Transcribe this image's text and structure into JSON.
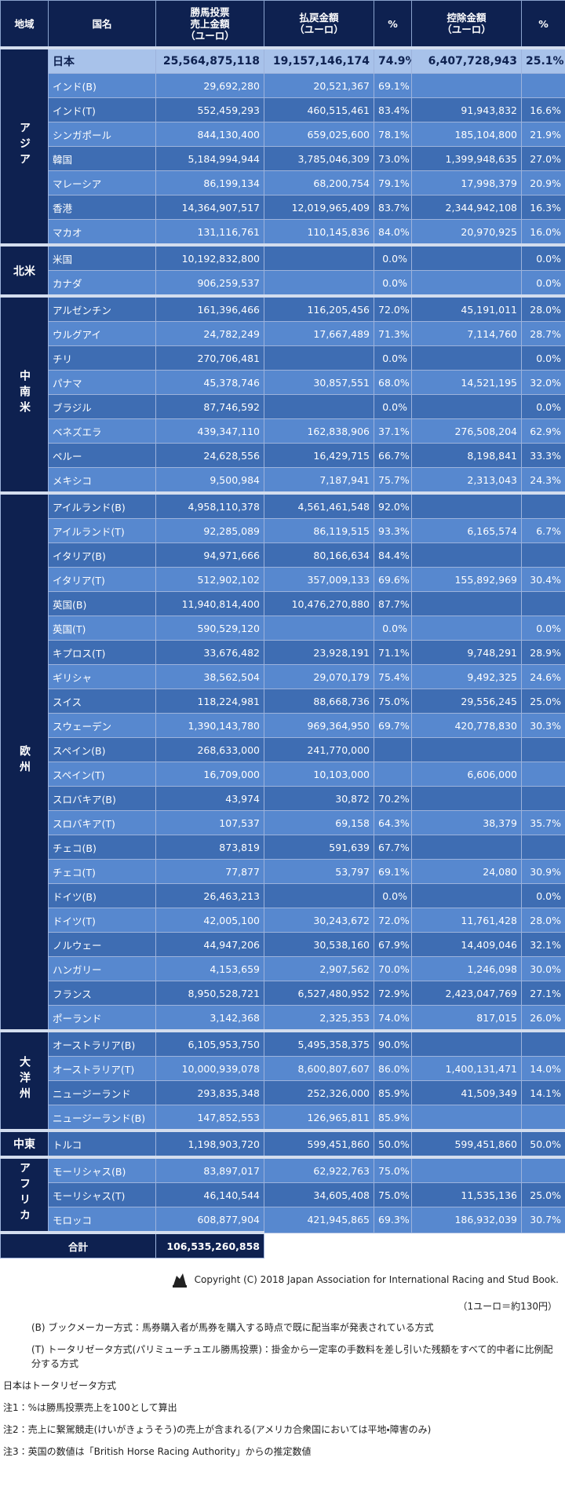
{
  "table": {
    "header": [
      "地域",
      "国名",
      "勝馬投票\n売上金額\n（ユーロ）",
      "払戻金額\n（ユーロ）",
      "%",
      "控除金額\n（ユーロ）",
      "%"
    ],
    "groups": [
      {
        "region": "アジア",
        "rows": [
          [
            "日本",
            "25,564,875,118",
            "19,157,146,174",
            "74.9%",
            "6,407,728,943",
            "25.1%"
          ],
          [
            "インド(B)",
            "29,692,280",
            "20,521,367",
            "69.1%",
            null,
            null
          ],
          [
            "インド(T)",
            "552,459,293",
            "460,515,461",
            "83.4%",
            "91,943,832",
            "16.6%"
          ],
          [
            "シンガポール",
            "844,130,400",
            "659,025,600",
            "78.1%",
            "185,104,800",
            "21.9%"
          ],
          [
            "韓国",
            "5,184,994,944",
            "3,785,046,309",
            "73.0%",
            "1,399,948,635",
            "27.0%"
          ],
          [
            "マレーシア",
            "86,199,134",
            "68,200,754",
            "79.1%",
            "17,998,379",
            "20.9%"
          ],
          [
            "香港",
            "14,364,907,517",
            "12,019,965,409",
            "83.7%",
            "2,344,942,108",
            "16.3%"
          ],
          [
            "マカオ",
            "131,116,761",
            "110,145,836",
            "84.0%",
            "20,970,925",
            "16.0%"
          ]
        ]
      },
      {
        "region": "北米",
        "rows": [
          [
            "米国",
            "10,192,832,800",
            null,
            "0.0%",
            null,
            "0.0%"
          ],
          [
            "カナダ",
            "906,259,537",
            null,
            "0.0%",
            null,
            "0.0%"
          ]
        ]
      },
      {
        "region": "中南米",
        "rows": [
          [
            "アルゼンチン",
            "161,396,466",
            "116,205,456",
            "72.0%",
            "45,191,011",
            "28.0%"
          ],
          [
            "ウルグアイ",
            "24,782,249",
            "17,667,489",
            "71.3%",
            "7,114,760",
            "28.7%"
          ],
          [
            "チリ",
            "270,706,481",
            null,
            "0.0%",
            null,
            "0.0%"
          ],
          [
            "パナマ",
            "45,378,746",
            "30,857,551",
            "68.0%",
            "14,521,195",
            "32.0%"
          ],
          [
            "ブラジル",
            "87,746,592",
            null,
            "0.0%",
            null,
            "0.0%"
          ],
          [
            "ベネズエラ",
            "439,347,110",
            "162,838,906",
            "37.1%",
            "276,508,204",
            "62.9%"
          ],
          [
            "ペルー",
            "24,628,556",
            "16,429,715",
            "66.7%",
            "8,198,841",
            "33.3%"
          ],
          [
            "メキシコ",
            "9,500,984",
            "7,187,941",
            "75.7%",
            "2,313,043",
            "24.3%"
          ]
        ]
      },
      {
        "region": "欧州",
        "rows": [
          [
            "アイルランド(B)",
            "4,958,110,378",
            "4,561,461,548",
            "92.0%",
            null,
            null
          ],
          [
            "アイルランド(T)",
            "92,285,089",
            "86,119,515",
            "93.3%",
            "6,165,574",
            "6.7%"
          ],
          [
            "イタリア(B)",
            "94,971,666",
            "80,166,634",
            "84.4%",
            null,
            null
          ],
          [
            "イタリア(T)",
            "512,902,102",
            "357,009,133",
            "69.6%",
            "155,892,969",
            "30.4%"
          ],
          [
            "英国(B)",
            "11,940,814,400",
            "10,476,270,880",
            "87.7%",
            null,
            null
          ],
          [
            "英国(T)",
            "590,529,120",
            null,
            "0.0%",
            null,
            "0.0%"
          ],
          [
            "キプロス(T)",
            "33,676,482",
            "23,928,191",
            "71.1%",
            "9,748,291",
            "28.9%"
          ],
          [
            "ギリシャ",
            "38,562,504",
            "29,070,179",
            "75.4%",
            "9,492,325",
            "24.6%"
          ],
          [
            "スイス",
            "118,224,981",
            "88,668,736",
            "75.0%",
            "29,556,245",
            "25.0%"
          ],
          [
            "スウェーデン",
            "1,390,143,780",
            "969,364,950",
            "69.7%",
            "420,778,830",
            "30.3%"
          ],
          [
            "スペイン(B)",
            "268,633,000",
            "241,770,000",
            null,
            null,
            null
          ],
          [
            "スペイン(T)",
            "16,709,000",
            "10,103,000",
            null,
            "6,606,000",
            null
          ],
          [
            "スロバキア(B)",
            "43,974",
            "30,872",
            "70.2%",
            null,
            null
          ],
          [
            "スロバキア(T)",
            "107,537",
            "69,158",
            "64.3%",
            "38,379",
            "35.7%"
          ],
          [
            "チェコ(B)",
            "873,819",
            "591,639",
            "67.7%",
            null,
            null
          ],
          [
            "チェコ(T)",
            "77,877",
            "53,797",
            "69.1%",
            "24,080",
            "30.9%"
          ],
          [
            "ドイツ(B)",
            "26,463,213",
            null,
            "0.0%",
            null,
            "0.0%"
          ],
          [
            "ドイツ(T)",
            "42,005,100",
            "30,243,672",
            "72.0%",
            "11,761,428",
            "28.0%"
          ],
          [
            "ノルウェー",
            "44,947,206",
            "30,538,160",
            "67.9%",
            "14,409,046",
            "32.1%"
          ],
          [
            "ハンガリー",
            "4,153,659",
            "2,907,562",
            "70.0%",
            "1,246,098",
            "30.0%"
          ],
          [
            "フランス",
            "8,950,528,721",
            "6,527,480,952",
            "72.9%",
            "2,423,047,769",
            "27.1%"
          ],
          [
            "ポーランド",
            "3,142,368",
            "2,325,353",
            "74.0%",
            "817,015",
            "26.0%"
          ]
        ]
      },
      {
        "region": "大洋州",
        "rows": [
          [
            "オーストラリア(B)",
            "6,105,953,750",
            "5,495,358,375",
            "90.0%",
            null,
            null
          ],
          [
            "オーストラリア(T)",
            "10,000,939,078",
            "8,600,807,607",
            "86.0%",
            "1,400,131,471",
            "14.0%"
          ],
          [
            "ニュージーランド",
            "293,835,348",
            "252,326,000",
            "85.9%",
            "41,509,349",
            "14.1%"
          ],
          [
            "ニュージーランド(B)",
            "147,852,553",
            "126,965,811",
            "85.9%",
            null,
            null
          ]
        ]
      },
      {
        "region": "中東",
        "rows": [
          [
            "トルコ",
            "1,198,903,720",
            "599,451,860",
            "50.0%",
            "599,451,860",
            "50.0%"
          ]
        ]
      },
      {
        "region": "アフリカ",
        "rows": [
          [
            "モーリシャス(B)",
            "83,897,017",
            "62,922,763",
            "75.0%",
            null,
            null
          ],
          [
            "モーリシャス(T)",
            "46,140,544",
            "34,605,408",
            "75.0%",
            "11,535,136",
            "25.0%"
          ],
          [
            "モロッコ",
            "608,877,904",
            "421,945,865",
            "69.3%",
            "186,932,039",
            "30.7%"
          ]
        ]
      }
    ],
    "total": {
      "label": "合計",
      "value": "106,535,260,858"
    }
  },
  "footer": {
    "copyright": "Copyright (C) 2018 Japan Association for International Racing and Stud Book.",
    "rate": "（1ユーロ＝約130円）",
    "notes_indented": [
      "(B) ブックメーカー方式：馬券購入者が馬券を購入する時点で既に配当率が発表されている方式",
      "(T) トータリゼータ方式(パリミューチュエル勝馬投票)：掛金から一定率の手数料を差し引いた残額をすべて的中者に比例配分する方式"
    ],
    "notes": [
      "日本はトータリゼータ方式",
      "注1：%は勝馬投票売上を100として算出",
      "注2：売上に繋駕競走(けいがきょうそう)の売上が含まれる(アメリカ合衆国においては平地・障害のみ)",
      "注3：英国の数値は「British Horse Racing Authority」からの推定数値"
    ]
  }
}
